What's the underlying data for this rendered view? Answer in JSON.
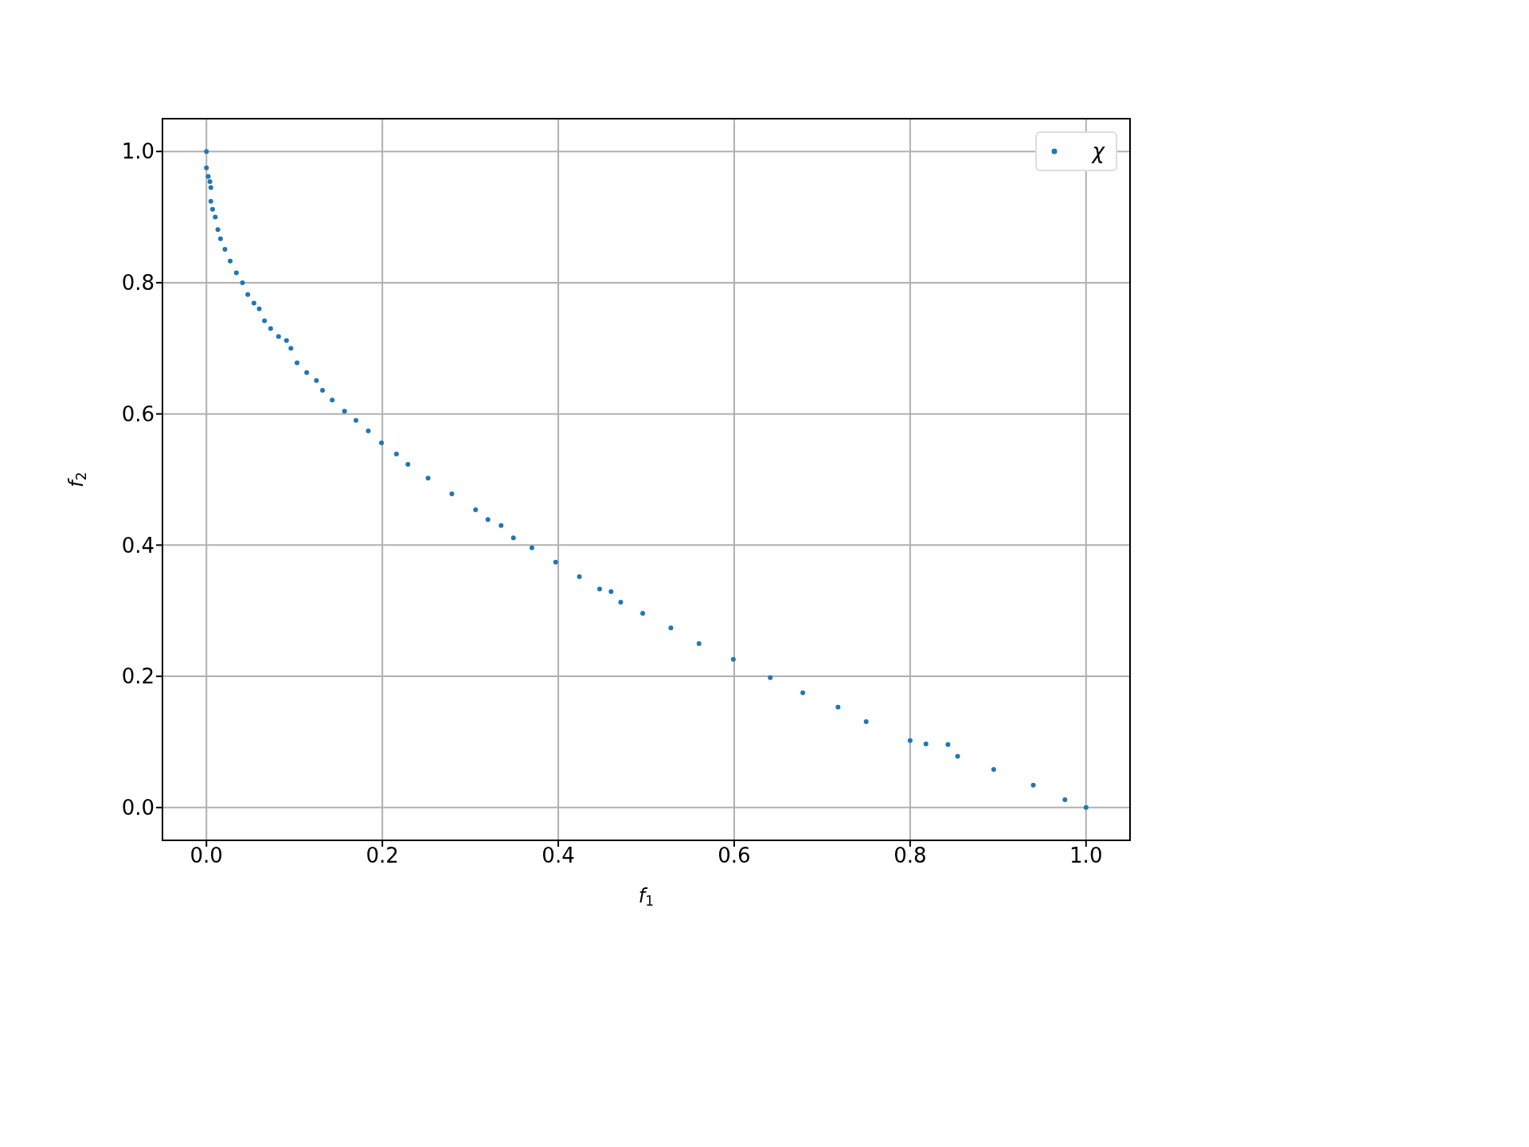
{
  "chart_data": {
    "type": "scatter",
    "xlabel": "f$_{1}$",
    "ylabel": "f$_{2}$",
    "xlim": [
      -0.05,
      1.05
    ],
    "ylim": [
      -0.05,
      1.05
    ],
    "xticks": [
      {
        "value": 0,
        "label": "0.0"
      },
      0.2,
      0.4,
      0.6,
      0.8,
      {
        "value": 1,
        "label": "1.0"
      }
    ],
    "yticks": [
      {
        "value": 0,
        "label": "0.0"
      },
      0.2,
      0.4,
      0.6,
      0.8,
      {
        "value": 1,
        "label": "1.0"
      }
    ],
    "grid": true,
    "legend": "top right",
    "marker": "circle",
    "series": [
      {
        "name": "χ",
        "color": "#1f77b4",
        "x": [
          0,
          0,
          0.002,
          0.004,
          0.005,
          0.005,
          0.007,
          0.01,
          0.013,
          0.016,
          0.021,
          0.027,
          0.034,
          0.041,
          0.047,
          0.054,
          0.06,
          0.066,
          0.073,
          0.082,
          0.091,
          0.096,
          0.103,
          0.114,
          0.125,
          0.132,
          0.143,
          0.157,
          0.17,
          0.184,
          0.199,
          0.216,
          0.229,
          0.252,
          0.279,
          0.306,
          0.32,
          0.335,
          0.349,
          0.37,
          0.397,
          0.424,
          0.447,
          0.46,
          0.471,
          0.496,
          0.528,
          0.56,
          0.599,
          0.641,
          0.678,
          0.718,
          0.75,
          0.8,
          0.818,
          0.843,
          0.854,
          0.895,
          0.94,
          0.976,
          1.0
        ],
        "values": [
          1.0,
          0.975,
          0.962,
          0.954,
          0.945,
          0.924,
          0.912,
          0.9,
          0.881,
          0.867,
          0.851,
          0.833,
          0.815,
          0.8,
          0.782,
          0.769,
          0.76,
          0.742,
          0.73,
          0.718,
          0.712,
          0.7,
          0.678,
          0.663,
          0.651,
          0.636,
          0.621,
          0.604,
          0.59,
          0.574,
          0.556,
          0.539,
          0.523,
          0.502,
          0.478,
          0.454,
          0.439,
          0.43,
          0.411,
          0.396,
          0.374,
          0.352,
          0.333,
          0.329,
          0.313,
          0.296,
          0.274,
          0.25,
          0.226,
          0.198,
          0.175,
          0.153,
          0.131,
          0.102,
          0.097,
          0.096,
          0.078,
          0.058,
          0.034,
          0.012,
          0.0
        ]
      }
    ]
  }
}
